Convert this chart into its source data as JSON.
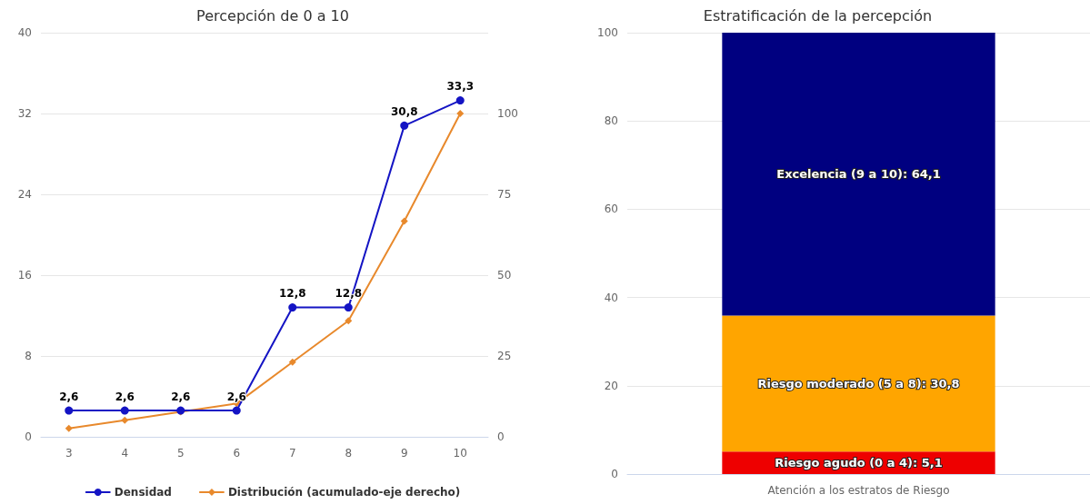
{
  "chart_data": [
    {
      "type": "line",
      "title": "Percepción de 0 a 10",
      "categories": [
        "3",
        "4",
        "5",
        "6",
        "7",
        "8",
        "9",
        "10"
      ],
      "series": [
        {
          "name": "Densidad",
          "color": "#1414c4",
          "marker": "circle",
          "values": [
            2.6,
            2.6,
            2.6,
            2.6,
            12.8,
            12.8,
            30.8,
            33.3
          ],
          "value_labels": [
            "2,6",
            "2,6",
            "2,6",
            "2,6",
            "12,8",
            "12,8",
            "30,8",
            "33,3"
          ]
        },
        {
          "name": "Distribución (acumulado-eje derecho)",
          "color": "#e8892c",
          "marker": "diamond",
          "axis": "y2",
          "values": [
            2.6,
            5.1,
            7.7,
            10.3,
            23.1,
            35.9,
            66.7,
            100
          ]
        }
      ],
      "ylim": [
        0,
        40
      ],
      "yticks": [
        0,
        8,
        16,
        24,
        32,
        40
      ],
      "y2lim": [
        0,
        125
      ],
      "y2ticks": [
        0,
        25,
        50,
        75,
        100
      ],
      "grid": "y",
      "legend": "bottom"
    },
    {
      "type": "bar",
      "stacked": true,
      "title": "Estratificación de la percepción",
      "categories": [
        "Atención a los estratos de Riesgo"
      ],
      "series": [
        {
          "color": "#ee0000",
          "values": [
            5.1
          ],
          "value_labels": [
            "Riesgo agudo (0 a 4): 5,1"
          ]
        },
        {
          "color": "#ffa500",
          "values": [
            30.8
          ],
          "value_labels": [
            "Riesgo moderado (5 a 8): 30,8"
          ]
        },
        {
          "color": "#000080",
          "values": [
            64.1
          ],
          "value_labels": [
            "Excelencia (9 a 10): 64,1"
          ]
        }
      ],
      "ylim": [
        0,
        100
      ],
      "yticks": [
        0,
        20,
        40,
        60,
        80,
        100
      ],
      "grid": "y",
      "legend": false
    }
  ]
}
